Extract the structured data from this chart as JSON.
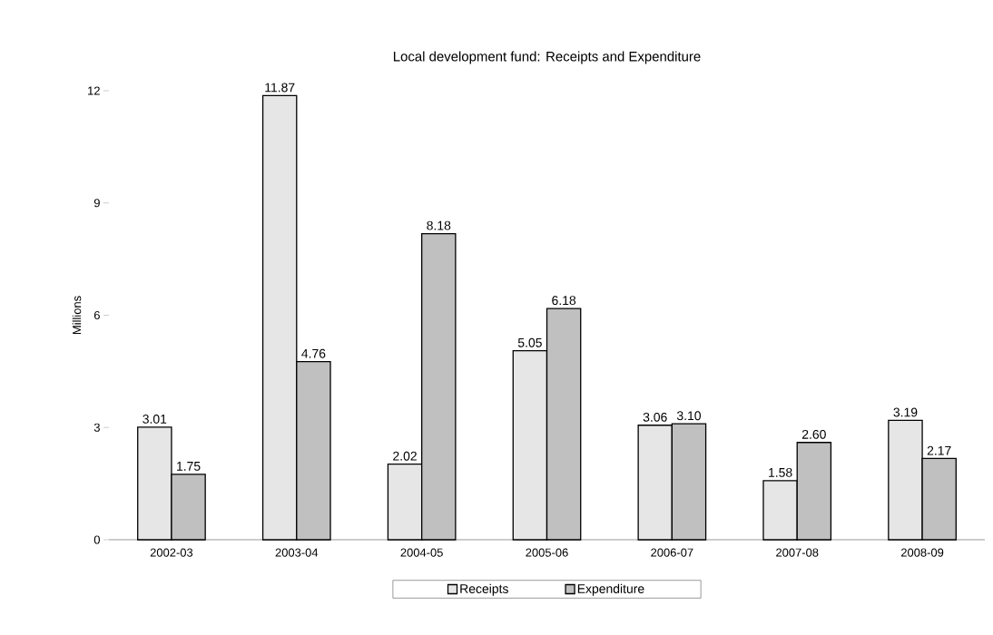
{
  "chart_data": {
    "type": "bar",
    "title": "Local development fund: Receipts and Expenditure",
    "ylabel": "Millions",
    "categories": [
      "2002-03",
      "2003-04",
      "2004-05",
      "2005-06",
      "2006-07",
      "2007-08",
      "2008-09"
    ],
    "series": [
      {
        "name": "Receipts",
        "color": "#e6e6e6",
        "values": [
          3.01,
          11.87,
          2.02,
          5.05,
          3.06,
          1.58,
          3.19
        ],
        "value_labels": [
          "3.01",
          "11.87",
          "2.02",
          "5.05",
          "3.06",
          "1.58",
          "3.19"
        ]
      },
      {
        "name": "Expenditure",
        "color": "#c0c0c0",
        "values": [
          1.75,
          4.76,
          8.18,
          6.18,
          3.1,
          2.6,
          2.17
        ],
        "value_labels": [
          "1.75",
          "4.76",
          "8.18",
          "6.18",
          "3.10",
          "2.60",
          "2.17"
        ]
      }
    ],
    "ylim": [
      0,
      12
    ],
    "yticks": [
      0,
      3,
      6,
      9,
      12
    ],
    "grid": false,
    "legend": "bottom"
  }
}
